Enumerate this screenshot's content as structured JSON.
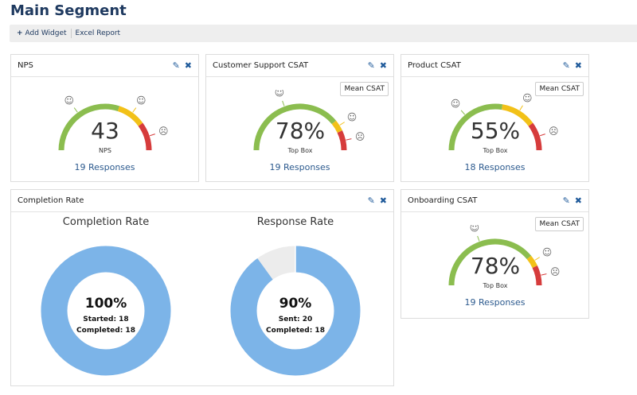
{
  "page": {
    "title": "Main Segment"
  },
  "toolbar": {
    "add_widget": "Add Widget",
    "excel_report": "Excel Report"
  },
  "colors": {
    "green": "#8bbd4f",
    "yellow": "#f2c118",
    "red": "#d63c3c",
    "donut_fill": "#7cb4e8",
    "donut_rest": "#ececec",
    "link": "#2c5a8e"
  },
  "widgets": {
    "nps": {
      "title": "NPS",
      "value": "43",
      "label": "NPS",
      "responses": "19 Responses",
      "segments": [
        0.6,
        0.8
      ]
    },
    "cs": {
      "title": "Customer Support CSAT",
      "button": "Mean CSAT",
      "value": "78%",
      "label": "Top Box",
      "responses": "19 Responses",
      "segments": [
        0.78,
        0.86
      ]
    },
    "product": {
      "title": "Product CSAT",
      "button": "Mean CSAT",
      "value": "55%",
      "label": "Top Box",
      "responses": "18 Responses",
      "segments": [
        0.55,
        0.8
      ]
    },
    "onboarding": {
      "title": "Onboarding CSAT",
      "button": "Mean CSAT",
      "value": "78%",
      "label": "Top Box",
      "responses": "19 Responses",
      "segments": [
        0.78,
        0.86
      ]
    },
    "completion": {
      "title": "Completion Rate",
      "charts": [
        {
          "title": "Completion Rate",
          "value": "100%",
          "line1": "Started: 18",
          "line2": "Completed: 18",
          "fraction": 1.0
        },
        {
          "title": "Response Rate",
          "value": "90%",
          "line1": "Sent: 20",
          "line2": "Completed: 18",
          "fraction": 0.9
        }
      ]
    }
  },
  "icons": {
    "add": "plus-icon",
    "edit": "pencil-icon",
    "close": "x-icon",
    "happy": "smiley-happy-icon",
    "neutral": "smiley-neutral-icon",
    "sad": "smiley-sad-icon"
  }
}
